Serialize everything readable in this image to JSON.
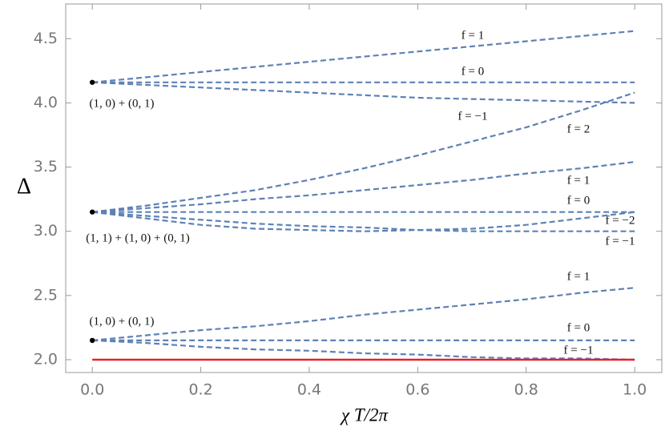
{
  "chart_data": {
    "type": "line",
    "xlabel": "χ T/2π",
    "ylabel": "Δ",
    "xlim": [
      -0.049,
      1.05
    ],
    "ylim": [
      1.9,
      4.77
    ],
    "xticks": [
      {
        "value": 0,
        "label": "0.0"
      },
      0.2,
      0.4,
      0.6,
      0.8,
      {
        "value": 1,
        "label": "1.0"
      }
    ],
    "yticks": [
      {
        "value": 2,
        "label": "2.0"
      },
      2.5,
      {
        "value": 3,
        "label": "3.0"
      },
      3.5,
      {
        "value": 4,
        "label": "4.0"
      },
      4.5
    ],
    "x": [
      0,
      0.1,
      0.2,
      0.3,
      0.4,
      0.5,
      0.6,
      0.7,
      0.8,
      0.9,
      1
    ],
    "annotations": [
      "(1, 0) + (0, 1)",
      "(1, 1) + (1, 0) + (0, 1)",
      "(1, 0) + (0, 1)"
    ],
    "series": [
      {
        "name": "f = 1",
        "color": "#5e81b5",
        "values": [
          4.16,
          4.2,
          4.24,
          4.28,
          4.32,
          4.36,
          4.4,
          4.44,
          4.48,
          4.52,
          4.56
        ]
      },
      {
        "name": "f = 0",
        "color": "#5e81b5",
        "values": [
          4.16,
          4.16,
          4.16,
          4.16,
          4.16,
          4.16,
          4.16,
          4.16,
          4.16,
          4.16,
          4.16
        ]
      },
      {
        "name": "f = −1",
        "color": "#5e81b5",
        "values": [
          4.16,
          4.14,
          4.12,
          4.1,
          4.08,
          4.06,
          4.04,
          4.03,
          4.02,
          4.01,
          4.0
        ]
      },
      {
        "name": "f = 2",
        "color": "#5e81b5",
        "values": [
          3.15,
          3.2,
          3.26,
          3.32,
          3.4,
          3.49,
          3.59,
          3.7,
          3.81,
          3.94,
          4.08
        ]
      },
      {
        "name": "f = 1",
        "color": "#5e81b5",
        "values": [
          3.15,
          3.18,
          3.21,
          3.25,
          3.28,
          3.32,
          3.36,
          3.4,
          3.45,
          3.49,
          3.54
        ]
      },
      {
        "name": "f = 0",
        "color": "#5e81b5",
        "values": [
          3.15,
          3.15,
          3.15,
          3.15,
          3.15,
          3.15,
          3.15,
          3.15,
          3.15,
          3.15,
          3.15
        ]
      },
      {
        "name": "f = −2",
        "color": "#5e81b5",
        "values": [
          3.15,
          3.1,
          3.05,
          3.02,
          3.01,
          3.0,
          3.01,
          3.02,
          3.05,
          3.1,
          3.15
        ]
      },
      {
        "name": "f = −1",
        "color": "#5e81b5",
        "values": [
          3.15,
          3.12,
          3.09,
          3.06,
          3.04,
          3.03,
          3.01,
          3.0,
          3.0,
          3.0,
          3.0
        ]
      },
      {
        "name": "f = 1",
        "color": "#5e81b5",
        "values": [
          2.15,
          2.19,
          2.23,
          2.26,
          2.3,
          2.35,
          2.39,
          2.43,
          2.47,
          2.52,
          2.56
        ]
      },
      {
        "name": "f = 0",
        "color": "#5e81b5",
        "values": [
          2.15,
          2.15,
          2.15,
          2.15,
          2.15,
          2.15,
          2.15,
          2.15,
          2.15,
          2.15,
          2.15
        ]
      },
      {
        "name": "f = −1",
        "color": "#5e81b5",
        "values": [
          2.15,
          2.13,
          2.1,
          2.08,
          2.07,
          2.05,
          2.04,
          2.02,
          2.01,
          2.01,
          2.0
        ]
      },
      {
        "color": "#e8202a",
        "values": [
          2.0,
          2.0,
          2.0,
          2.0,
          2.0,
          2.0,
          2.0,
          2.0,
          2.0,
          2.0,
          2.0
        ]
      }
    ]
  }
}
